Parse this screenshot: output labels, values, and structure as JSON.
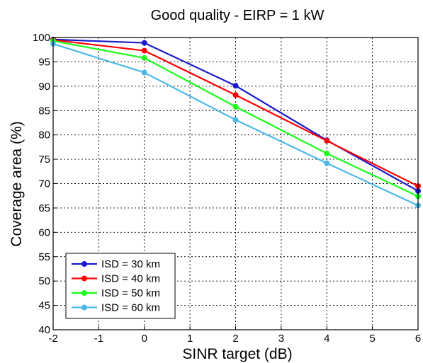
{
  "chart_data": {
    "type": "line",
    "title": "Good quality - EIRP = 1 kW",
    "xlabel": "SINR target (dB)",
    "ylabel": "Coverage area (%)",
    "x": [
      -2,
      0,
      2,
      4,
      6
    ],
    "xlim": [
      -2,
      6
    ],
    "ylim": [
      40,
      100
    ],
    "xticks": [
      "-2",
      "-1",
      "0",
      "1",
      "2",
      "3",
      "4",
      "5",
      "6"
    ],
    "yticks": [
      "40",
      "45",
      "50",
      "55",
      "60",
      "65",
      "70",
      "75",
      "80",
      "85",
      "90",
      "95",
      "100"
    ],
    "grid": true,
    "legend_position": "bottom-left",
    "series": [
      {
        "name": "ISD = 30 km",
        "color": "#1a1acc",
        "values": [
          99.6,
          98.9,
          90.1,
          78.9,
          68.5
        ]
      },
      {
        "name": "ISD = 40 km",
        "color": "#ff0000",
        "values": [
          99.5,
          97.3,
          88.2,
          78.8,
          69.5
        ]
      },
      {
        "name": "ISD = 50 km",
        "color": "#1aff1a",
        "values": [
          99.3,
          95.8,
          85.8,
          76.2,
          67.4
        ]
      },
      {
        "name": "ISD = 60 km",
        "color": "#4db8e8",
        "values": [
          98.7,
          92.8,
          83.1,
          74.2,
          65.5
        ]
      }
    ]
  }
}
